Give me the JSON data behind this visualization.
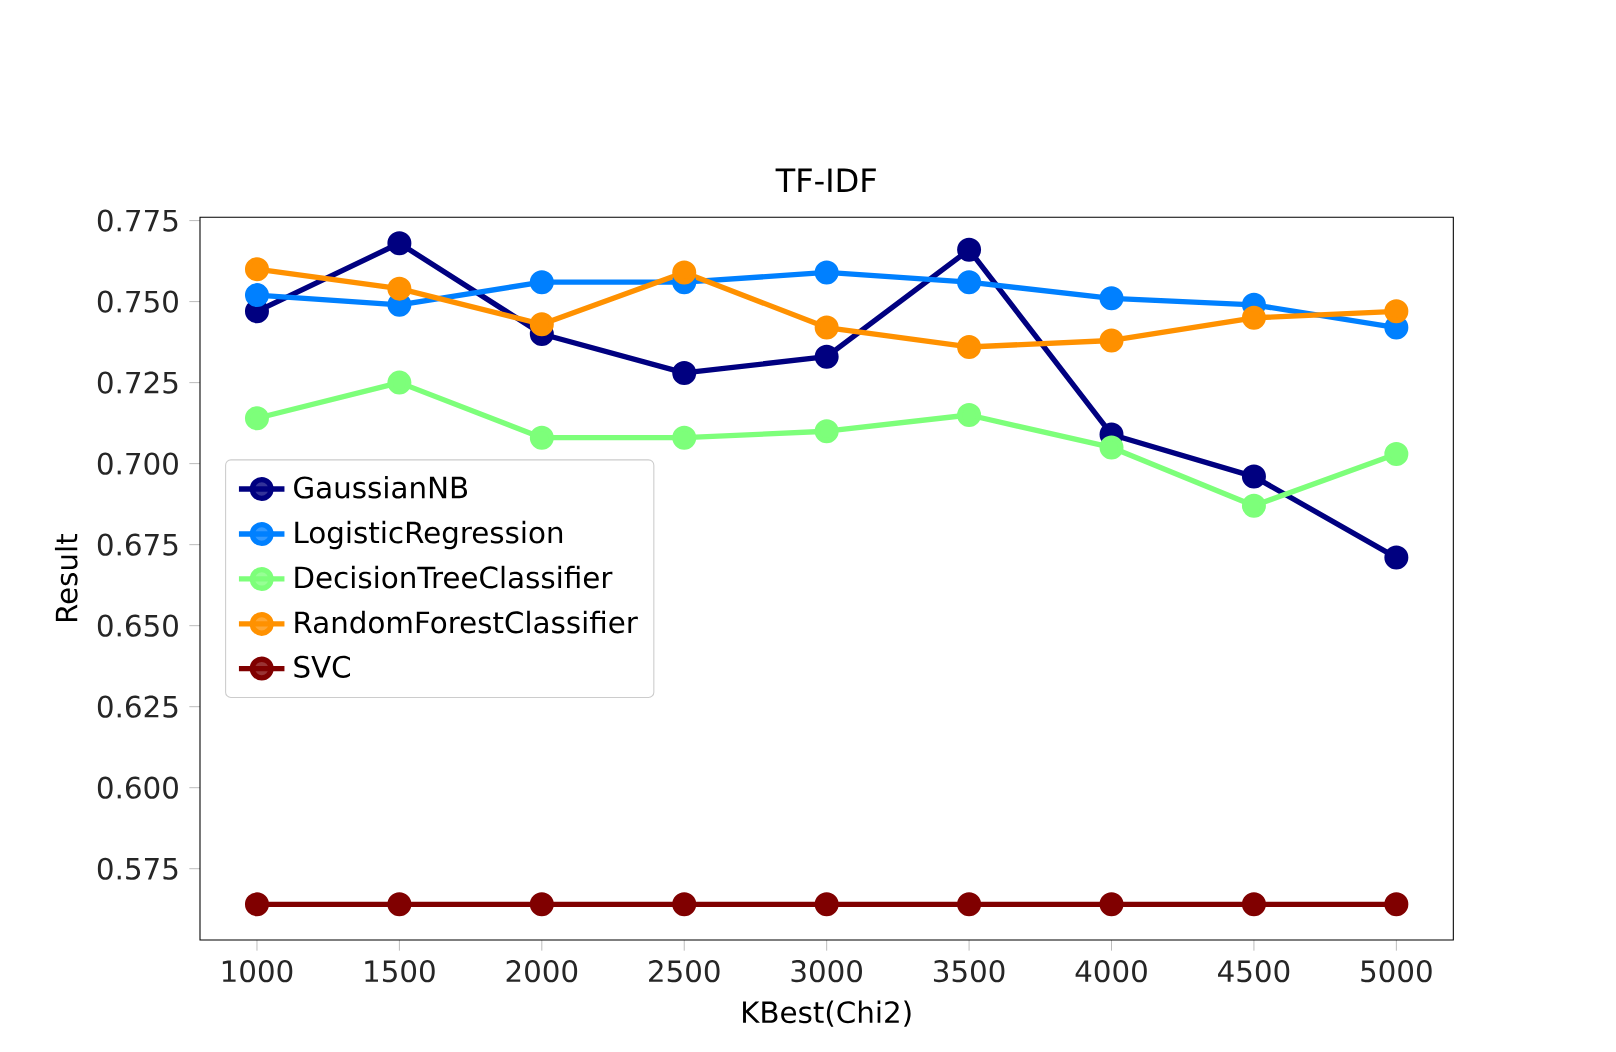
{
  "chart_data": {
    "type": "line",
    "title": "TF-IDF",
    "xlabel": "KBest(Chi2)",
    "ylabel": "Result",
    "x": [
      1000,
      1500,
      2000,
      2500,
      3000,
      3500,
      4000,
      4500,
      5000
    ],
    "xlim": [
      800,
      5200
    ],
    "xticks": [
      1000,
      1500,
      2000,
      2500,
      3000,
      3500,
      4000,
      4500,
      5000
    ],
    "ylim": [
      0.553,
      0.776
    ],
    "yticks": [
      {
        "value": 0.575,
        "label": "0.575"
      },
      {
        "value": 0.6,
        "label": "0.600"
      },
      {
        "value": 0.625,
        "label": "0.625"
      },
      {
        "value": 0.65,
        "label": "0.650"
      },
      {
        "value": 0.675,
        "label": "0.675"
      },
      {
        "value": 0.7,
        "label": "0.700"
      },
      {
        "value": 0.725,
        "label": "0.725"
      },
      {
        "value": 0.75,
        "label": "0.750"
      },
      {
        "value": 0.775,
        "label": "0.775"
      }
    ],
    "marker": "circle",
    "line_style": "solid",
    "legend": "center left",
    "grid": false,
    "series": [
      {
        "name": "GaussianNB",
        "color": "#000080",
        "values": [
          0.747,
          0.768,
          0.74,
          0.728,
          0.733,
          0.766,
          0.709,
          0.696,
          0.671
        ]
      },
      {
        "name": "LogisticRegression",
        "color": "#0080ff",
        "values": [
          0.752,
          0.749,
          0.756,
          0.756,
          0.759,
          0.756,
          0.751,
          0.749,
          0.742
        ]
      },
      {
        "name": "DecisionTreeClassifier",
        "color": "#7dff7a",
        "values": [
          0.714,
          0.725,
          0.708,
          0.708,
          0.71,
          0.715,
          0.705,
          0.687,
          0.703
        ]
      },
      {
        "name": "RandomForestClassifier",
        "color": "#ff9100",
        "values": [
          0.76,
          0.754,
          0.743,
          0.759,
          0.742,
          0.736,
          0.738,
          0.745,
          0.747
        ]
      },
      {
        "name": "SVC",
        "color": "#800000",
        "values": [
          0.564,
          0.564,
          0.564,
          0.564,
          0.564,
          0.564,
          0.564,
          0.564,
          0.564
        ]
      }
    ]
  }
}
